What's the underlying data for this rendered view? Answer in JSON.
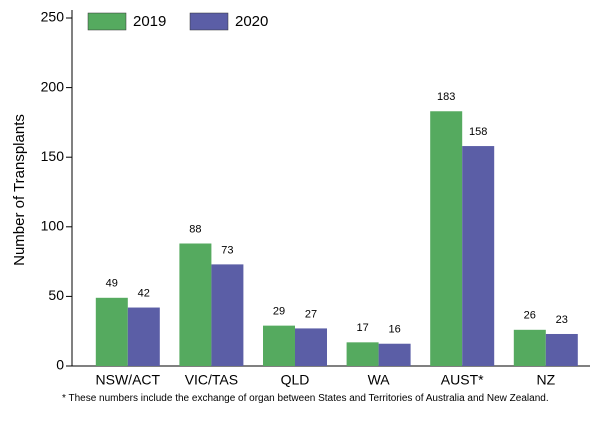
{
  "chart_data": {
    "type": "bar",
    "ylabel": "Number of Transplants",
    "categories": [
      "NSW/ACT",
      "VIC/TAS",
      "QLD",
      "WA",
      "AUST*",
      "NZ"
    ],
    "series": [
      {
        "name": "2019",
        "color": "#55aa5f",
        "values": [
          49,
          88,
          29,
          17,
          183,
          26
        ]
      },
      {
        "name": "2020",
        "color": "#5b5ea6",
        "values": [
          42,
          73,
          27,
          16,
          158,
          23
        ]
      }
    ],
    "ylim": [
      0,
      250
    ],
    "yticks": [
      0,
      50,
      100,
      150,
      200,
      250
    ],
    "legend": "top-left",
    "footnote": "* These numbers include the exchange of organ between States and Territories of Australia and New Zealand."
  }
}
